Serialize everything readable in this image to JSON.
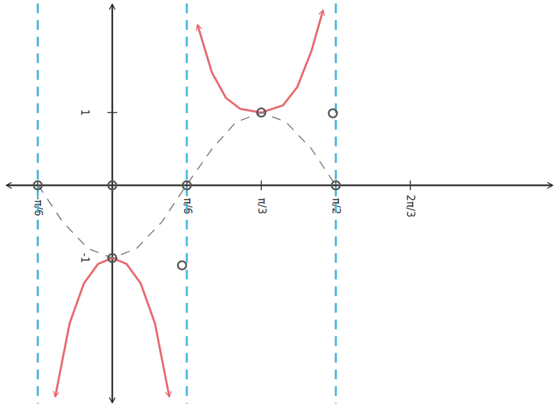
{
  "chart_data": {
    "type": "line",
    "xlim": [
      -0.75,
      3.1
    ],
    "ylim": [
      -3,
      2.5
    ],
    "xticks": [
      {
        "value": -0.5236,
        "label": "-π/6"
      },
      {
        "value": 0.5236,
        "label": "π/6"
      },
      {
        "value": 1.0472,
        "label": "π/3"
      },
      {
        "value": 1.5708,
        "label": "π/2"
      },
      {
        "value": 2.0944,
        "label": "2π/3"
      }
    ],
    "yticks": [
      1,
      -1
    ],
    "grid": false,
    "asymptotes": {
      "x": [
        -0.5236,
        0.5236,
        1.5708
      ],
      "color": "#4ab8dc",
      "line_style": "dashed"
    },
    "series": [
      {
        "type": "line",
        "color": "#e8686e",
        "line_style": "solid",
        "marker": "arrow",
        "x": [
          0.6,
          0.7,
          0.8,
          0.9,
          1.047,
          1.2,
          1.3,
          1.4,
          1.48
        ],
        "values": [
          2.2,
          1.55,
          1.2,
          1.05,
          1.0,
          1.1,
          1.35,
          1.85,
          2.4
        ]
      },
      {
        "type": "line",
        "color": "#e8686e",
        "line_style": "solid",
        "marker": "arrow",
        "x": [
          -0.4,
          -0.3,
          -0.2,
          -0.1,
          0,
          0.1,
          0.2,
          0.3,
          0.4
        ],
        "values": [
          -2.9,
          -1.9,
          -1.35,
          -1.08,
          -1.0,
          -1.08,
          -1.35,
          -1.9,
          -2.9
        ]
      },
      {
        "type": "line",
        "color": "#777777",
        "line_style": "dashed",
        "marker": "none",
        "x": [
          -0.52,
          -0.35,
          -0.17,
          0,
          0.17,
          0.35,
          0.52,
          0.7,
          0.87,
          1.05,
          1.22,
          1.4,
          1.57
        ],
        "values": [
          0,
          -0.5,
          -0.87,
          -1,
          -0.87,
          -0.5,
          0,
          0.5,
          0.87,
          1,
          0.87,
          0.5,
          0
        ]
      },
      {
        "type": "scatter",
        "color": "#555555",
        "marker": "circle",
        "x": [
          -0.5236,
          0,
          0.5236,
          1.5708,
          0,
          1.047,
          0.49,
          1.55
        ],
        "values": [
          0,
          0,
          0,
          0,
          -1,
          1,
          -1.1,
          0.99
        ]
      }
    ]
  }
}
